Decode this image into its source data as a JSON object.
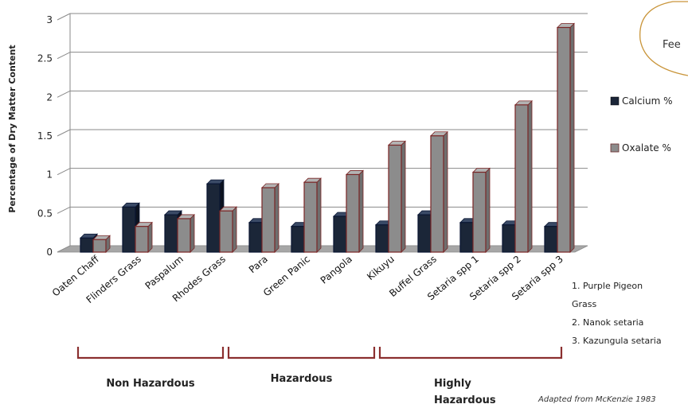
{
  "chart_data": {
    "type": "bar",
    "ylabel": "Percentage of Dry Matter Content",
    "ylim": [
      0,
      3
    ],
    "yticks": [
      "0",
      "0.5",
      "1",
      "1.5",
      "2",
      "2.5",
      "3"
    ],
    "grid": "horizontal",
    "legend_position": "right",
    "categories": [
      "Oaten Chaff",
      "Flinders Grass",
      "Paspalum",
      "Rhodes Grass",
      "Para",
      "Green Panic",
      "Pangola",
      "Kikuyu",
      "Buffel Grass",
      "Setaria spp 1",
      "Setaria spp 2",
      "Setaria spp 3"
    ],
    "series": [
      {
        "name": "Calcium %",
        "color": "#1b2638",
        "values": [
          0.1,
          0.5,
          0.4,
          0.8,
          0.3,
          0.25,
          0.38,
          0.27,
          0.4,
          0.3,
          0.27,
          0.25
        ]
      },
      {
        "name": "Oxalate %",
        "color": "#8c8c8c",
        "values": [
          0.08,
          0.25,
          0.35,
          0.45,
          0.75,
          0.82,
          0.92,
          1.3,
          1.42,
          0.95,
          1.82,
          2.82
        ]
      }
    ],
    "groups": [
      {
        "lines": [
          "Non Hazardous"
        ],
        "from": 0,
        "to": 3
      },
      {
        "lines": [
          "Hazardous"
        ],
        "from": 4,
        "to": 7
      },
      {
        "lines": [
          "Highly",
          "Hazardous"
        ],
        "from": 8,
        "to": 11
      }
    ],
    "notes": [
      "1. Purple Pigeon",
      "Grass",
      "2. Nanok setaria",
      "3. Kazungula setaria"
    ],
    "source": "Adapted from McKenzie 1983",
    "callout": "Fee"
  }
}
